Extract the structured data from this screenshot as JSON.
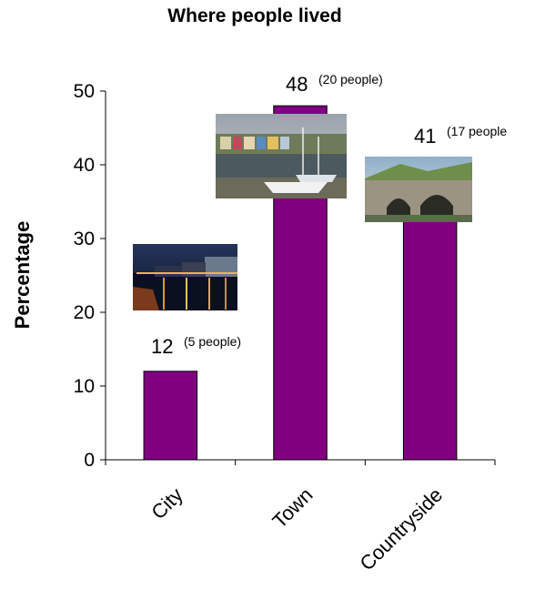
{
  "chart_data": {
    "type": "bar",
    "title": "Where people lived",
    "xlabel": "",
    "ylabel": "Percentage",
    "ylim": [
      0,
      50
    ],
    "yticks": [
      0,
      10,
      20,
      30,
      40,
      50
    ],
    "categories": [
      "City",
      "Town",
      "Countryside"
    ],
    "values": [
      12,
      48,
      41
    ],
    "data_labels": [
      "12",
      "48",
      "41"
    ],
    "data_notes": [
      "(5 people)",
      "(20 people)",
      "(17 people"
    ],
    "grid": false,
    "legend": "none",
    "bar_color": "#800080"
  }
}
